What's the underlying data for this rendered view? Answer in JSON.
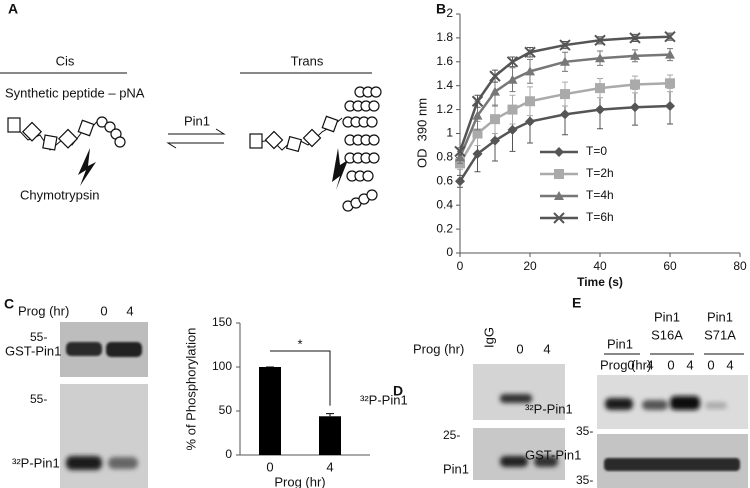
{
  "panel_labels": [
    "A",
    "B",
    "C",
    "D",
    "E"
  ],
  "diagram": {
    "cis": "Cis",
    "trans": "Trans",
    "substrate": "Synthetic peptide – pNA",
    "enzyme": "Pin1",
    "protease": "Chymotrypsin"
  },
  "chart_data": [
    {
      "type": "line",
      "ylabel": "OD  390 nm",
      "xlabel": "Time (s)",
      "x": [
        0,
        5,
        10,
        15,
        20,
        30,
        40,
        50,
        60
      ],
      "xlim": [
        0,
        80
      ],
      "xticks": [
        0,
        20,
        40,
        60,
        80
      ],
      "ylim": [
        0,
        2
      ],
      "yticks": [
        0,
        0.2,
        0.4,
        0.6,
        0.8,
        1,
        1.2,
        1.4,
        1.6,
        1.8,
        2
      ],
      "series": [
        {
          "name": "T=0",
          "color": "#555555",
          "marker": "diamond",
          "values": [
            0.6,
            0.83,
            0.94,
            1.03,
            1.1,
            1.16,
            1.2,
            1.22,
            1.23
          ],
          "errors": [
            0.05,
            0.15,
            0.17,
            0.18,
            0.18,
            0.17,
            0.16,
            0.15,
            0.15
          ]
        },
        {
          "name": "T=2h",
          "color": "#aaaaaa",
          "marker": "square",
          "values": [
            0.75,
            1.0,
            1.12,
            1.2,
            1.27,
            1.33,
            1.38,
            1.41,
            1.42
          ],
          "errors": [
            0.05,
            0.1,
            0.12,
            0.12,
            0.12,
            0.1,
            0.08,
            0.07,
            0.07
          ]
        },
        {
          "name": "T=4h",
          "color": "#777777",
          "marker": "triangle",
          "values": [
            0.8,
            1.15,
            1.35,
            1.45,
            1.52,
            1.6,
            1.63,
            1.65,
            1.66
          ],
          "errors": [
            0.05,
            0.12,
            0.12,
            0.1,
            0.1,
            0.08,
            0.06,
            0.05,
            0.05
          ]
        },
        {
          "name": "T=6h",
          "color": "#555555",
          "marker": "x",
          "values": [
            0.85,
            1.27,
            1.48,
            1.6,
            1.68,
            1.74,
            1.78,
            1.8,
            1.81
          ],
          "errors": [
            0.03,
            0.05,
            0.05,
            0.04,
            0.04,
            0.03,
            0.03,
            0.03,
            0.03
          ]
        }
      ]
    },
    {
      "type": "bar",
      "ylabel": "% of Phosphorylation",
      "xlabel": "Prog (hr)",
      "categories": [
        "0",
        "4"
      ],
      "values": [
        100,
        44
      ],
      "errors": [
        0,
        3
      ],
      "color": "#000000",
      "ylim": [
        0,
        150
      ],
      "yticks": [
        0,
        50,
        100,
        150
      ],
      "annotation": "*"
    }
  ],
  "blot_c": {
    "prog_label": "Prog (hr)",
    "lanes": [
      "0",
      "4"
    ],
    "markers": [
      "55-",
      "55-"
    ],
    "rows": [
      "GST-Pin1",
      "³²P-Pin1"
    ]
  },
  "blot_d": {
    "prog_label": "Prog (hr)",
    "lanes": [
      "IgG",
      "0",
      "4"
    ],
    "marker": "25-",
    "rows": [
      "³²P-Pin1",
      "Pin1"
    ]
  },
  "blot_e": {
    "groups": [
      [
        "Pin1"
      ],
      [
        "Pin1",
        "S16A"
      ],
      [
        "Pin1",
        "S71A"
      ]
    ],
    "prog_label": "Prog (hr)",
    "lanes": [
      "0",
      "4",
      "0",
      "4",
      "0",
      "4"
    ],
    "markers": [
      "35-",
      "35-"
    ],
    "rows": [
      "³²P-Pin1",
      "GST-Pin1"
    ]
  }
}
